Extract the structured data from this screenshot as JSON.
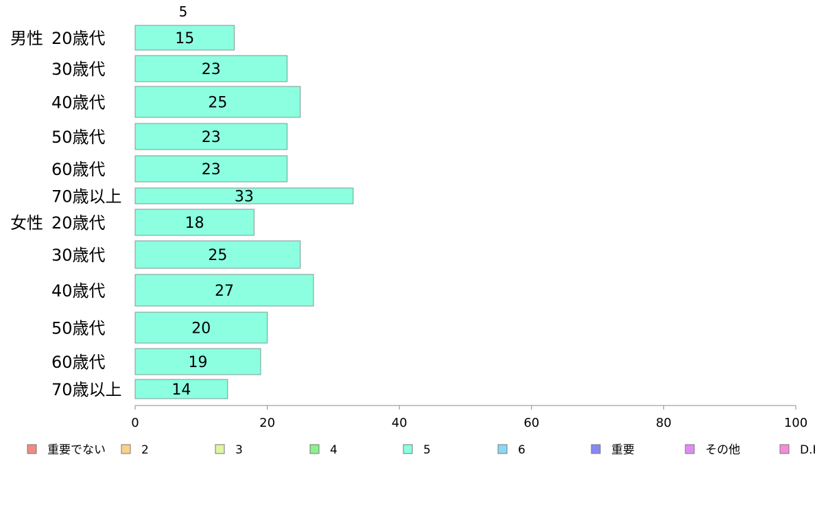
{
  "chart_data": {
    "type": "bar",
    "orientation": "horizontal",
    "stacked": true,
    "top_label": "5",
    "groups": [
      {
        "label": "男性",
        "categories": [
          "20歳代",
          "30歳代",
          "40歳代",
          "50歳代",
          "60歳代",
          "70歳以上"
        ]
      },
      {
        "label": "女性",
        "categories": [
          "20歳代",
          "30歳代",
          "40歳代",
          "50歳代",
          "60歳代",
          "70歳以上"
        ]
      }
    ],
    "legend_entries": [
      "重要でない",
      "2",
      "3",
      "4",
      "5",
      "6",
      "重要",
      "その他",
      "D.K"
    ],
    "legend_colors": [
      "#f28b82",
      "#fdd08a",
      "#dff5a0",
      "#8cf08c",
      "#8cffe0",
      "#8ad8f5",
      "#8888f5",
      "#df8cf5",
      "#f58cd8"
    ],
    "series": [
      {
        "name": "5",
        "color": "#8cffe0",
        "values": [
          15,
          23,
          25,
          23,
          23,
          33,
          18,
          25,
          27,
          20,
          19,
          14
        ]
      }
    ],
    "xlim": [
      0,
      100
    ],
    "xticks": [
      "0",
      "20",
      "40",
      "60",
      "80",
      "100"
    ],
    "grid": false,
    "legend_position": "bottom"
  }
}
